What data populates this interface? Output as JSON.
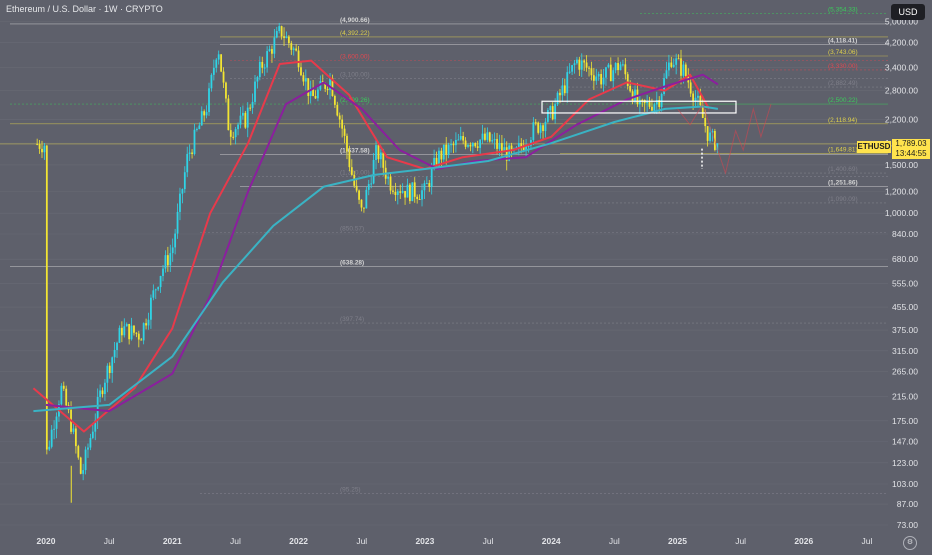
{
  "header": {
    "title": "Ethereum / U.S. Dollar · 1W · CRYPTO",
    "currency_button": "USD"
  },
  "symbol": {
    "ticker": "ETHUSD",
    "price": "1,789.03",
    "countdown": "13:44:55"
  },
  "colors": {
    "background": "#5e606b",
    "up_candle": "#2fd4e6",
    "down_candle": "#f2e533",
    "ma_fast": "#e83a4b",
    "ma_mid": "#8b1f9e",
    "ma_slow": "#3ab3c4",
    "line_white": "#d9d9d9",
    "line_yellow": "#e4d64a",
    "line_green": "#38d35a",
    "line_red": "#e8474f",
    "line_gray": "#8c8c96",
    "price_tag": "#ffe34d"
  },
  "chart_data": {
    "type": "candlestick",
    "scale": "log",
    "ylim": [
      70,
      5600
    ],
    "x_ticks": [
      "2020",
      "Jul",
      "2021",
      "Jul",
      "2022",
      "Jul",
      "2023",
      "Jul",
      "2024",
      "Jul",
      "2025",
      "Jul",
      "2026",
      "Jul"
    ],
    "y_ticks": [
      "5,000.00",
      "4,200.00",
      "3,400.00",
      "2,800.00",
      "2,200.00",
      "1,800.00",
      "1,500.00",
      "1,200.00",
      "1,000.00",
      "840.00",
      "680.00",
      "555.00",
      "455.00",
      "375.00",
      "315.00",
      "265.00",
      "215.00",
      "175.00",
      "147.00",
      "123.00",
      "103.00",
      "87.00",
      "73.00"
    ],
    "price_path": [
      [
        2020.0,
        130
      ],
      [
        2020.12,
        230
      ],
      [
        2020.2,
        170
      ],
      [
        2020.28,
        110
      ],
      [
        2020.45,
        240
      ],
      [
        2020.6,
        380
      ],
      [
        2020.75,
        360
      ],
      [
        2020.9,
        600
      ],
      [
        2021.0,
        740
      ],
      [
        2021.12,
        1600
      ],
      [
        2021.28,
        2500
      ],
      [
        2021.36,
        4200
      ],
      [
        2021.45,
        2000
      ],
      [
        2021.58,
        2200
      ],
      [
        2021.7,
        3400
      ],
      [
        2021.86,
        4650
      ],
      [
        2022.0,
        3700
      ],
      [
        2022.1,
        2600
      ],
      [
        2022.25,
        3100
      ],
      [
        2022.35,
        2000
      ],
      [
        2022.45,
        1200
      ],
      [
        2022.5,
        1000
      ],
      [
        2022.62,
        1700
      ],
      [
        2022.72,
        1300
      ],
      [
        2022.86,
        1200
      ],
      [
        2023.0,
        1200
      ],
      [
        2023.1,
        1600
      ],
      [
        2023.3,
        1850
      ],
      [
        2023.5,
        1850
      ],
      [
        2023.7,
        1600
      ],
      [
        2023.85,
        2000
      ],
      [
        2024.0,
        2300
      ],
      [
        2024.2,
        3600
      ],
      [
        2024.4,
        3100
      ],
      [
        2024.55,
        3500
      ],
      [
        2024.7,
        2400
      ],
      [
        2024.85,
        2600
      ],
      [
        2024.95,
        3700
      ],
      [
        2025.05,
        3300
      ],
      [
        2025.15,
        2600
      ],
      [
        2025.25,
        1900
      ],
      [
        2025.32,
        1789
      ]
    ],
    "moving_averages": [
      {
        "name": "fast",
        "path": [
          [
            2019.9,
            230
          ],
          [
            2020.3,
            160
          ],
          [
            2020.7,
            230
          ],
          [
            2021.0,
            380
          ],
          [
            2021.3,
            1000
          ],
          [
            2021.6,
            1800
          ],
          [
            2021.85,
            3500
          ],
          [
            2022.1,
            3600
          ],
          [
            2022.4,
            2700
          ],
          [
            2022.7,
            1600
          ],
          [
            2023.0,
            1450
          ],
          [
            2023.3,
            1600
          ],
          [
            2023.7,
            1700
          ],
          [
            2024.0,
            1900
          ],
          [
            2024.3,
            2600
          ],
          [
            2024.6,
            3000
          ],
          [
            2024.9,
            2800
          ],
          [
            2025.1,
            3200
          ],
          [
            2025.25,
            2400
          ]
        ]
      },
      {
        "name": "mid",
        "path": [
          [
            2020.0,
            200
          ],
          [
            2020.5,
            190
          ],
          [
            2021.0,
            260
          ],
          [
            2021.3,
            500
          ],
          [
            2021.6,
            1200
          ],
          [
            2021.9,
            2500
          ],
          [
            2022.2,
            3000
          ],
          [
            2022.5,
            2400
          ],
          [
            2022.8,
            1700
          ],
          [
            2023.1,
            1450
          ],
          [
            2023.4,
            1550
          ],
          [
            2023.8,
            1600
          ],
          [
            2024.2,
            2100
          ],
          [
            2024.6,
            2600
          ],
          [
            2024.9,
            2900
          ],
          [
            2025.2,
            3200
          ],
          [
            2025.32,
            2950
          ]
        ]
      },
      {
        "name": "slow",
        "path": [
          [
            2019.9,
            190
          ],
          [
            2020.5,
            200
          ],
          [
            2021.0,
            300
          ],
          [
            2021.4,
            560
          ],
          [
            2021.8,
            900
          ],
          [
            2022.2,
            1250
          ],
          [
            2022.6,
            1380
          ],
          [
            2023.0,
            1450
          ],
          [
            2023.5,
            1550
          ],
          [
            2024.0,
            1800
          ],
          [
            2024.5,
            2150
          ],
          [
            2024.9,
            2400
          ],
          [
            2025.2,
            2450
          ],
          [
            2025.32,
            2400
          ]
        ]
      }
    ],
    "levels": [
      {
        "value": 4900.66,
        "label": "(4,900.66)",
        "style": "white"
      },
      {
        "value": 4118.41,
        "label": "(4,118.41)",
        "style": "white"
      },
      {
        "value": 2118.94,
        "label": "(2,118.94)",
        "style": "yellow"
      },
      {
        "value": 1789.03,
        "label": "",
        "style": "yellow"
      },
      {
        "value": 1251.86,
        "label": "(1,251.86)",
        "style": "white"
      },
      {
        "value": 638.28,
        "label": "(638.28)",
        "style": "white"
      },
      {
        "value": 1637.58,
        "label": "(1,637.58)",
        "style": "white"
      },
      {
        "value": 4392.22,
        "label": "(4,392.22)",
        "style": "yellow"
      },
      {
        "value": 3600,
        "label": "(3,600.00)",
        "style": "red"
      },
      {
        "value": 3100,
        "label": "(3,100.00)",
        "style": "gray"
      },
      {
        "value": 2499.26,
        "label": "(2,499.26)",
        "style": "green"
      },
      {
        "value": 2882.49,
        "label": "(2,882.49)",
        "style": "gray"
      },
      {
        "value": 2500.22,
        "label": "(2,500.22)",
        "style": "green"
      },
      {
        "value": 3743.06,
        "label": "(3,743.06)",
        "style": "yellow"
      },
      {
        "value": 3330.0,
        "label": "(3,330.00)",
        "style": "red"
      },
      {
        "value": 1649.81,
        "label": "(1,649.81)",
        "style": "yellow"
      },
      {
        "value": 1400.69,
        "label": "(1,400.69)",
        "style": "gray"
      },
      {
        "value": 1090.09,
        "label": "(1,090.09)",
        "style": "gray"
      },
      {
        "value": 5354.33,
        "label": "(5,354.33)",
        "style": "green"
      },
      {
        "value": 850.57,
        "label": "(850.57)",
        "style": "gray"
      },
      {
        "value": 1360.0,
        "label": "(1,360.00)",
        "style": "gray"
      },
      {
        "value": 397.74,
        "label": "(397.74)",
        "style": "gray"
      },
      {
        "value": 95.25,
        "label": "(95.25)",
        "style": "gray"
      }
    ]
  }
}
